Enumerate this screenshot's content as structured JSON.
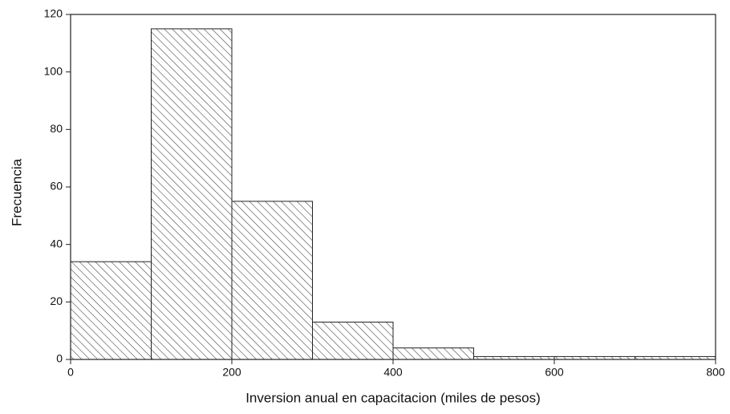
{
  "chart_data": {
    "type": "histogram",
    "xlabel": "Inversion anual en capacitacion (miles de pesos)",
    "ylabel": "Frecuencia",
    "bins": [
      0,
      100,
      200,
      300,
      400,
      500,
      600,
      700,
      800
    ],
    "values": [
      34,
      115,
      55,
      13,
      4,
      1,
      1,
      1
    ],
    "color": "#3a3a3a",
    "xlim": [
      0,
      800
    ],
    "xticks": [
      0,
      200,
      400,
      600,
      800
    ],
    "ylim": [
      0,
      120
    ],
    "yticks": [
      0,
      20,
      40,
      60,
      80,
      100,
      120
    ]
  }
}
